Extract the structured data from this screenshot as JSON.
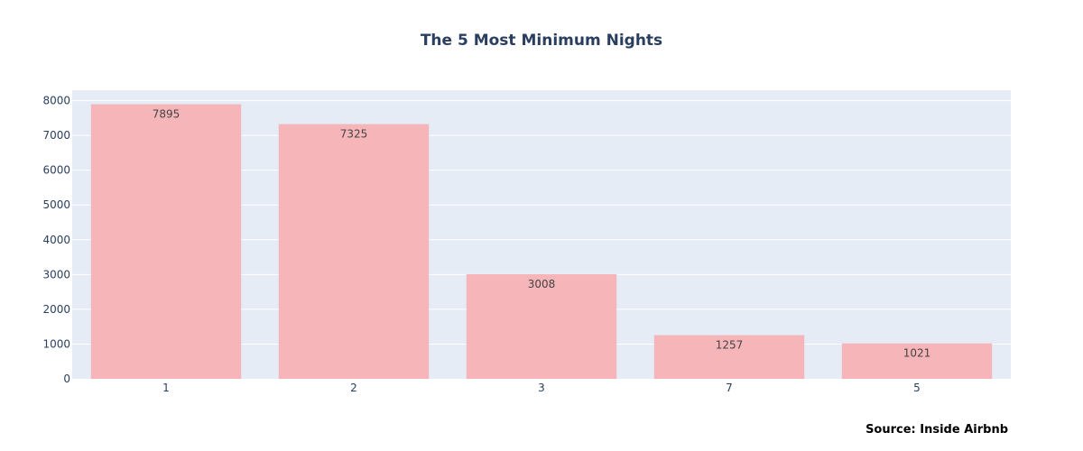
{
  "chart_data": {
    "type": "bar",
    "title": "The 5 Most Minimum Nights",
    "categories": [
      "1",
      "2",
      "3",
      "7",
      "5"
    ],
    "values": [
      7895,
      7325,
      3008,
      1257,
      1021
    ],
    "data_labels": [
      "7895",
      "7325",
      "3008",
      "1257",
      "1021"
    ],
    "xlabel": "",
    "ylabel": "",
    "ylim": [
      0,
      8300
    ],
    "yticks": [
      0,
      1000,
      2000,
      3000,
      4000,
      5000,
      6000,
      7000,
      8000
    ],
    "ytick_labels": [
      "0",
      "1000",
      "2000",
      "3000",
      "4000",
      "5000",
      "6000",
      "7000",
      "8000"
    ],
    "grid": true,
    "bar_color": "#f6b5b9",
    "plot_background": "#e5ecf6",
    "gridline_color": "#ffffff",
    "title_color": "#2a3f5f",
    "tick_color": "#2a3f5f",
    "label_color": "#444444",
    "annotation": "Source: Inside Airbnb"
  }
}
